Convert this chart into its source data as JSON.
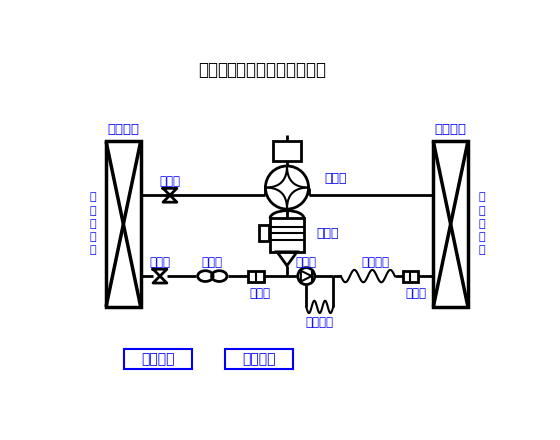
{
  "title_bold": "热泵型",
  "title_normal": "分体挂壁机工作原理图",
  "bg_color": "#ffffff",
  "line_color": "#000000",
  "text_color": "#0000ff",
  "labels": {
    "indoor_unit": "室内机组",
    "outdoor_unit": "室外机组",
    "indoor_exchanger": "室\n内\n换\n热\n器",
    "outdoor_exchanger": "室\n外\n换\n热\n器",
    "shutoff_valve1": "截止阀",
    "shutoff_valve2": "截止阀",
    "reversing_valve": "换向器",
    "compressor": "压缩机",
    "muffler": "消声器",
    "filter1": "过滤器",
    "filter2": "过滤器",
    "check_valve": "止回阀",
    "main_capillary": "主毛细管",
    "aux_capillary": "副毛细管",
    "cooling": "制冷工况",
    "heating": "制热工况"
  },
  "figsize": [
    5.6,
    4.4
  ],
  "dpi": 100
}
